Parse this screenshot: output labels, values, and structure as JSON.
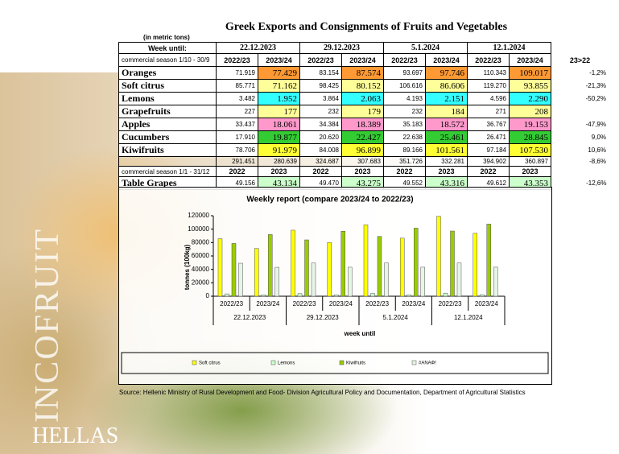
{
  "title": "Greek Exports and Consignments of Fruits and Vegetables",
  "unit_note": "(in metric tons)",
  "table": {
    "header": {
      "label": "Week until:",
      "weeks": [
        "22.12.2023",
        "29.12.2023",
        "5.1.2024",
        "12.1.2024"
      ]
    },
    "season1": {
      "label": "commercial season 1/10 - 30/9",
      "seasons": [
        "2022/23",
        "2023/24",
        "2022/23",
        "2023/24",
        "2022/23",
        "2023/24",
        "2022/23",
        "2023/24"
      ],
      "change_header": "23>22"
    },
    "products": [
      {
        "name": "Oranges",
        "values": [
          "71.919",
          "77.429",
          "83.154",
          "87.574",
          "93.697",
          "97.746",
          "110.343",
          "109.017"
        ],
        "change": "-1,2%"
      },
      {
        "name": "Soft citrus",
        "values": [
          "85.771",
          "71.162",
          "98.425",
          "80.152",
          "106.616",
          "86.606",
          "119.270",
          "93.855"
        ],
        "change": "-21,3%"
      },
      {
        "name": "Lemons",
        "values": [
          "3.482",
          "1.952",
          "3.864",
          "2.063",
          "4.193",
          "2.151",
          "4.596",
          "2.290"
        ],
        "change": "-50,2%"
      },
      {
        "name": "Grapefruits",
        "values": [
          "227",
          "177",
          "232",
          "179",
          "232",
          "184",
          "271",
          "208"
        ]
      },
      {
        "name": "Apples",
        "values": [
          "33.437",
          "18.061",
          "34.384",
          "18.389",
          "35.183",
          "18.572",
          "36.767",
          "19.153"
        ],
        "change": "-47,9%"
      },
      {
        "name": "Cucumbers",
        "values": [
          "17.910",
          "19.877",
          "20.620",
          "22.427",
          "22.638",
          "25.461",
          "26.471",
          "28.845"
        ],
        "change": "9,0%"
      },
      {
        "name": "Kiwifruits",
        "values": [
          "78.706",
          "91.979",
          "84.008",
          "96.899",
          "89.166",
          "101.561",
          "97.184",
          "107.530"
        ],
        "change": "10,6%"
      }
    ],
    "totals": {
      "values": [
        "291.451",
        "280.639",
        "324.687",
        "307.683",
        "351.726",
        "332.281",
        "394.902",
        "360.897"
      ],
      "change": "-8,6%"
    },
    "season2": {
      "label": "commercial season 1/1 - 31/12",
      "seasons": [
        "2022",
        "2023",
        "2022",
        "2023",
        "2022",
        "2023",
        "2022",
        "2023"
      ]
    },
    "grapes": {
      "name": "Table Grapes",
      "values": [
        "49.156",
        "43.134",
        "49.470",
        "43.275",
        "49.552",
        "43.316",
        "49.612",
        "43.353"
      ],
      "change": "-12,6%"
    }
  },
  "chart_data": {
    "type": "bar",
    "title": "Weekly report (compare 2023/24 to 2022/23)",
    "categories": [
      "2022/23",
      "2023/24",
      "2022/23",
      "2023/24",
      "2022/23",
      "2023/24",
      "2022/23",
      "2023/24"
    ],
    "groups": [
      "22.12.2023",
      "29.12.2023",
      "5.1.2024",
      "12.1.2024"
    ],
    "xlabel": "week until",
    "ylabel": "tonnes (100kg)",
    "ylim": [
      0,
      120000
    ],
    "yticks": [
      0,
      20000,
      40000,
      60000,
      80000,
      100000,
      120000
    ],
    "grid": false,
    "legend": "bottom",
    "series": [
      {
        "name": "Soft citrus",
        "color": "#ffff00",
        "values": [
          85771,
          71162,
          98425,
          80152,
          106616,
          86606,
          119270,
          93855
        ]
      },
      {
        "name": "Lemons",
        "color": "#ccffcc",
        "values": [
          3482,
          1952,
          3864,
          2063,
          4193,
          2151,
          4596,
          2290
        ]
      },
      {
        "name": "Kiwifruits",
        "color": "#99cc00",
        "values": [
          78706,
          91979,
          84008,
          96899,
          89166,
          101561,
          97184,
          107530
        ]
      },
      {
        "name": "#ΑΝΑΦ!",
        "color": "#e6f5e6",
        "values": [
          49156,
          43134,
          49470,
          43275,
          49552,
          43316,
          49612,
          43353
        ]
      }
    ]
  },
  "source": "Source: Hellenic Ministry of Rural Development and Food- Division Agricultural Policy and Documentation, Department of Agricultural Statistics",
  "side": {
    "brand": "INCOFRUIT",
    "country": "HELLAS"
  }
}
